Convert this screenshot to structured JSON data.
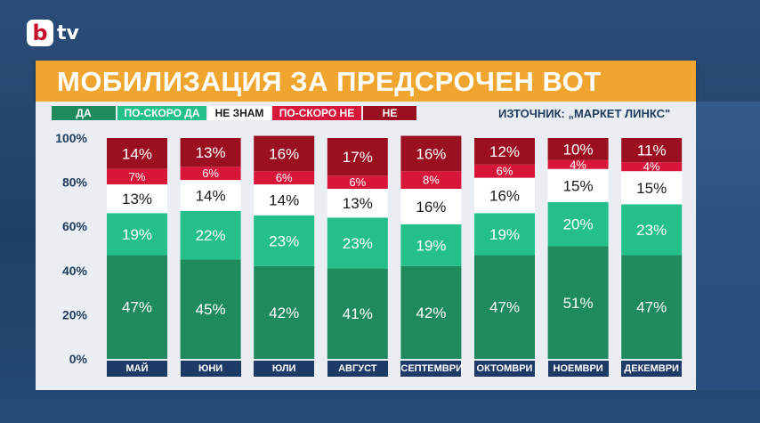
{
  "header": {
    "logo_letter": "b",
    "logo_text": "tv",
    "title": "МОБИЛИЗАЦИЯ ЗА ПРЕДСРОЧЕН ВОТ"
  },
  "source": "ИЗТОЧНИК: „МАРКЕТ ЛИНКС\"",
  "colors": {
    "da": "#1f8a5e",
    "po_skoro_da": "#25c08a",
    "ne_znam": "#ffffff",
    "po_skoro_ne": "#d7163a",
    "ne": "#9b1020"
  },
  "chart_data": {
    "type": "bar",
    "stacked": true,
    "categories": [
      "МАЙ",
      "ЮНИ",
      "ЮЛИ",
      "АВГУСТ",
      "СЕПТЕМВРИ",
      "ОКТОМВРИ",
      "НОЕМВРИ",
      "ДЕКЕМВРИ"
    ],
    "series": [
      {
        "name": "ДА",
        "values": [
          47,
          45,
          42,
          41,
          42,
          47,
          51,
          47
        ]
      },
      {
        "name": "ПО-СКОРО ДА",
        "values": [
          19,
          22,
          23,
          23,
          19,
          19,
          20,
          23
        ]
      },
      {
        "name": "НЕ ЗНАМ",
        "values": [
          13,
          14,
          14,
          13,
          16,
          16,
          15,
          15
        ]
      },
      {
        "name": "ПО-СКОРО НЕ",
        "values": [
          7,
          6,
          6,
          6,
          8,
          6,
          4,
          4
        ]
      },
      {
        "name": "НЕ",
        "values": [
          14,
          13,
          16,
          17,
          16,
          12,
          10,
          11
        ]
      }
    ],
    "ylim": [
      0,
      100
    ],
    "yticks": [
      "0%",
      "20%",
      "40%",
      "60%",
      "80%",
      "100%"
    ],
    "legend_position": "top-left"
  }
}
